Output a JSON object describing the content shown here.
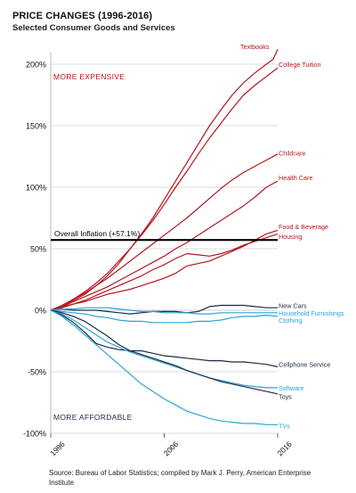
{
  "header": {
    "title": "PRICE CHANGES (1996-2016)",
    "subtitle": "Selected Consumer Goods and Services"
  },
  "source": "Source:  Bureau of Labor Statistics; compiled by Mark J. Perry, American Enterprise Institute",
  "colors": {
    "expensive": "#b5161f",
    "affordable": "#2aa6d6",
    "neutral": "#1c2b46",
    "inflation": "#000000",
    "grid": "#bcbcbc"
  },
  "chart_data": {
    "type": "line",
    "title": "PRICE CHANGES (1996-2016)",
    "subtitle": "Selected Consumer Goods and Services",
    "xlim": [
      1996,
      2016
    ],
    "ylim": [
      -100,
      210
    ],
    "x_ticks": [
      1996,
      2006,
      2016
    ],
    "x_tick_labels": [
      "1996",
      "2006",
      "2016"
    ],
    "y_ticks": [
      200,
      150,
      100,
      50,
      0,
      -50,
      -100
    ],
    "y_tick_labels": [
      "200%",
      "150%",
      "100%",
      "50%",
      "0%",
      "-50%",
      "-100%"
    ],
    "grid": true,
    "annotations": {
      "more_expensive": "MORE EXPENSIVE",
      "more_affordable": "MORE AFFORDABLE"
    },
    "inflation": {
      "label": "Overall Inflation (+57.1%)",
      "value": 57.1
    },
    "series": [
      {
        "name": "Textbooks",
        "color": "#b5161f",
        "label_y": 216,
        "x": [
          1996,
          1997,
          1998,
          1999,
          2000,
          2001,
          2002,
          2003,
          2004,
          2005,
          2006,
          2007,
          2008,
          2009,
          2010,
          2011,
          2012,
          2013,
          2014,
          2015,
          2015.6,
          2016
        ],
        "y": [
          0,
          3,
          8,
          13,
          20,
          28,
          38,
          50,
          62,
          75,
          90,
          105,
          120,
          135,
          150,
          163,
          175,
          185,
          193,
          200,
          204,
          212
        ]
      },
      {
        "name": "College Tuition",
        "color": "#b5161f",
        "label_y": 200,
        "x": [
          1996,
          1997,
          1998,
          1999,
          2000,
          2001,
          2002,
          2003,
          2004,
          2005,
          2006,
          2007,
          2008,
          2009,
          2010,
          2011,
          2012,
          2013,
          2014,
          2015,
          2016
        ],
        "y": [
          0,
          4,
          9,
          15,
          22,
          30,
          40,
          50,
          61,
          73,
          86,
          100,
          113,
          127,
          140,
          152,
          164,
          175,
          183,
          190,
          197
        ]
      },
      {
        "name": "Childcare",
        "color": "#b5161f",
        "label_y": 128,
        "x": [
          1996,
          1997,
          1998,
          1999,
          2000,
          2001,
          2002,
          2003,
          2004,
          2005,
          2006,
          2007,
          2008,
          2009,
          2010,
          2011,
          2012,
          2013,
          2014,
          2015,
          2016
        ],
        "y": [
          0,
          4,
          9,
          14,
          20,
          26,
          33,
          40,
          47,
          54,
          61,
          68,
          75,
          83,
          91,
          99,
          106,
          112,
          117,
          122,
          127
        ]
      },
      {
        "name": "Health Care",
        "color": "#b5161f",
        "label_y": 108,
        "x": [
          1996,
          1997,
          1998,
          1999,
          2000,
          2001,
          2002,
          2003,
          2004,
          2005,
          2006,
          2007,
          2008,
          2009,
          2010,
          2011,
          2012,
          2013,
          2014,
          2015,
          2016
        ],
        "y": [
          0,
          3,
          7,
          11,
          15,
          19,
          24,
          29,
          34,
          39,
          44,
          50,
          55,
          61,
          67,
          73,
          79,
          85,
          92,
          100,
          105
        ]
      },
      {
        "name": "Food & Beverage",
        "color": "#b5161f",
        "label_y": 68,
        "x": [
          1996,
          1997,
          1998,
          1999,
          2000,
          2001,
          2002,
          2003,
          2004,
          2005,
          2006,
          2007,
          2008,
          2009,
          2010,
          2011,
          2012,
          2013,
          2014,
          2015,
          2016
        ],
        "y": [
          0,
          2,
          5,
          7,
          10,
          13,
          15,
          17,
          20,
          23,
          26,
          30,
          36,
          38,
          40,
          44,
          48,
          52,
          57,
          62,
          65
        ]
      },
      {
        "name": "Housing",
        "color": "#b5161f",
        "label_y": 60,
        "x": [
          1996,
          1997,
          1998,
          1999,
          2000,
          2001,
          2002,
          2003,
          2004,
          2005,
          2006,
          2007,
          2008,
          2009,
          2010,
          2011,
          2012,
          2013,
          2014,
          2015,
          2016
        ],
        "y": [
          0,
          3,
          5,
          8,
          12,
          16,
          20,
          24,
          28,
          33,
          37,
          42,
          46,
          45,
          44,
          46,
          49,
          53,
          56,
          59,
          62
        ]
      },
      {
        "name": "New Cars",
        "color": "#1c2b46",
        "label_y": 4,
        "x": [
          1996,
          1997,
          1998,
          1999,
          2000,
          2001,
          2002,
          2003,
          2004,
          2005,
          2006,
          2007,
          2008,
          2009,
          2010,
          2011,
          2012,
          2013,
          2014,
          2015,
          2016
        ],
        "y": [
          0,
          1,
          0,
          0,
          0,
          -1,
          -2,
          -3,
          -2,
          -1,
          -1,
          -1,
          -2,
          -1,
          3,
          4,
          4,
          4,
          3,
          2,
          2
        ]
      },
      {
        "name": "Household Furnishings",
        "color": "#2aa6d6",
        "label_y": -2,
        "x": [
          1996,
          1997,
          1998,
          1999,
          2000,
          2001,
          2002,
          2003,
          2004,
          2005,
          2006,
          2007,
          2008,
          2009,
          2010,
          2011,
          2012,
          2013,
          2014,
          2015,
          2016
        ],
        "y": [
          0,
          1,
          1,
          2,
          2,
          2,
          1,
          0,
          -1,
          -1,
          -2,
          -2,
          -2,
          -3,
          -3,
          -2,
          -2,
          -2,
          -2,
          -2,
          -2
        ]
      },
      {
        "name": "Clothing",
        "color": "#2aa6d6",
        "label_y": -8,
        "x": [
          1996,
          1997,
          1998,
          1999,
          2000,
          2001,
          2002,
          2003,
          2004,
          2005,
          2006,
          2007,
          2008,
          2009,
          2010,
          2011,
          2012,
          2013,
          2014,
          2015,
          2016
        ],
        "y": [
          0,
          -1,
          -2,
          -3,
          -5,
          -6,
          -8,
          -9,
          -9,
          -10,
          -10,
          -10,
          -10,
          -9,
          -9,
          -8,
          -6,
          -5,
          -5,
          -4,
          -5
        ]
      },
      {
        "name": "Cellphone Service",
        "color": "#1c2b46",
        "label_y": -44,
        "x": [
          1996,
          1997,
          1998,
          1999,
          2000,
          2001,
          2002,
          2003,
          2004,
          2005,
          2006,
          2007,
          2008,
          2009,
          2010,
          2011,
          2012,
          2013,
          2014,
          2015,
          2016
        ],
        "y": [
          0,
          -4,
          -10,
          -18,
          -27,
          -30,
          -32,
          -33,
          -33,
          -35,
          -37,
          -38,
          -39,
          -40,
          -41,
          -41,
          -42,
          -42,
          -43,
          -44,
          -46
        ]
      },
      {
        "name": "Software",
        "color": "#2aa6d6",
        "label_y": -63,
        "x": [
          1996,
          1997,
          1998,
          1999,
          2000,
          2001,
          2002,
          2003,
          2004,
          2005,
          2006,
          2007,
          2008,
          2009,
          2010,
          2011,
          2012,
          2013,
          2014,
          2015,
          2016
        ],
        "y": [
          0,
          -3,
          -8,
          -14,
          -20,
          -26,
          -30,
          -34,
          -37,
          -40,
          -43,
          -46,
          -49,
          -52,
          -55,
          -57,
          -59,
          -61,
          -62,
          -63,
          -63
        ]
      },
      {
        "name": "Toys",
        "color": "#1c2b46",
        "label_y": -70,
        "x": [
          1996,
          1997,
          1998,
          1999,
          2000,
          2001,
          2002,
          2003,
          2004,
          2005,
          2006,
          2007,
          2008,
          2009,
          2010,
          2011,
          2012,
          2013,
          2014,
          2015,
          2016
        ],
        "y": [
          0,
          -2,
          -5,
          -9,
          -15,
          -21,
          -28,
          -33,
          -36,
          -39,
          -42,
          -45,
          -49,
          -52,
          -55,
          -58,
          -60,
          -62,
          -64,
          -66,
          -68
        ]
      },
      {
        "name": "TVs",
        "color": "#2aa6d6",
        "label_y": -94,
        "x": [
          1996,
          1997,
          1998,
          1999,
          2000,
          2001,
          2002,
          2003,
          2004,
          2005,
          2006,
          2007,
          2008,
          2009,
          2010,
          2011,
          2012,
          2013,
          2014,
          2015,
          2016
        ],
        "y": [
          0,
          -5,
          -12,
          -20,
          -28,
          -36,
          -44,
          -52,
          -60,
          -66,
          -72,
          -77,
          -82,
          -85,
          -88,
          -90,
          -91,
          -92,
          -92,
          -93,
          -93
        ]
      }
    ]
  }
}
